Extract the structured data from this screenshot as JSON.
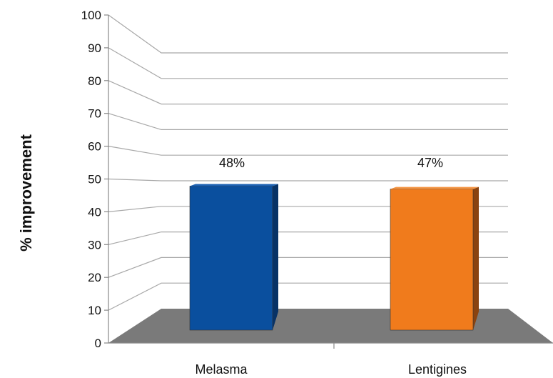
{
  "chart_data": {
    "type": "bar",
    "title": "",
    "xlabel": "",
    "ylabel": "% improvement",
    "categories": [
      "Melasma",
      "Lentigines"
    ],
    "values": [
      48,
      47
    ],
    "data_labels": [
      "48%",
      "47%"
    ],
    "ylim": [
      0,
      100
    ],
    "yticks": [
      0,
      10,
      20,
      30,
      40,
      50,
      60,
      70,
      80,
      90,
      100
    ],
    "grid": true,
    "legend": "none",
    "style": "3d",
    "colors": {
      "bars": [
        "#0a4f9e",
        "#f07b1c"
      ],
      "bar_sides": [
        "#073266",
        "#8a4310"
      ],
      "bar_tops": [
        "#1d62b3",
        "#f59645"
      ],
      "floor": "#7a7a7a",
      "gridline": "#a8a8a8",
      "axis": "#888888"
    }
  }
}
